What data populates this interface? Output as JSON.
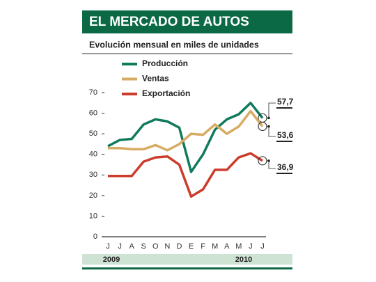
{
  "chart_data": {
    "type": "line",
    "title": "EL MERCADO DE AUTOS",
    "subtitle": "Evolución mensual en miles de unidades",
    "categories": [
      "J",
      "J",
      "A",
      "S",
      "O",
      "N",
      "D",
      "E",
      "F",
      "M",
      "A",
      "M",
      "J",
      "J"
    ],
    "years": [
      "2009",
      "2010"
    ],
    "series": [
      {
        "name": "Producción",
        "color": "#0f7a5c",
        "values": [
          44,
          47,
          47.5,
          54.5,
          57,
          56,
          53,
          31.5,
          40,
          52,
          57,
          59.5,
          65,
          57.7
        ],
        "value_labels": [
          null,
          null,
          null,
          null,
          null,
          null,
          null,
          null,
          null,
          null,
          null,
          null,
          null,
          "57,7"
        ]
      },
      {
        "name": "Ventas",
        "color": "#d8ab63",
        "values": [
          43,
          43,
          42.5,
          42.5,
          44.5,
          42,
          45,
          50,
          49.5,
          54.5,
          50,
          53.5,
          61,
          53.6
        ],
        "value_labels": [
          null,
          null,
          null,
          null,
          null,
          null,
          null,
          null,
          null,
          null,
          null,
          null,
          null,
          "53,6"
        ]
      },
      {
        "name": "Exportación",
        "color": "#cc3b2b",
        "values": [
          29.5,
          29.5,
          29.5,
          36.5,
          38.5,
          39,
          35,
          19.5,
          23,
          32.5,
          32.5,
          38.5,
          40.5,
          36.9
        ],
        "value_labels": [
          null,
          null,
          null,
          null,
          null,
          null,
          null,
          null,
          null,
          null,
          null,
          null,
          null,
          "36,9"
        ]
      }
    ],
    "ylim": [
      0,
      70
    ],
    "yticks": [
      0,
      10,
      20,
      30,
      40,
      50,
      60,
      70
    ]
  }
}
